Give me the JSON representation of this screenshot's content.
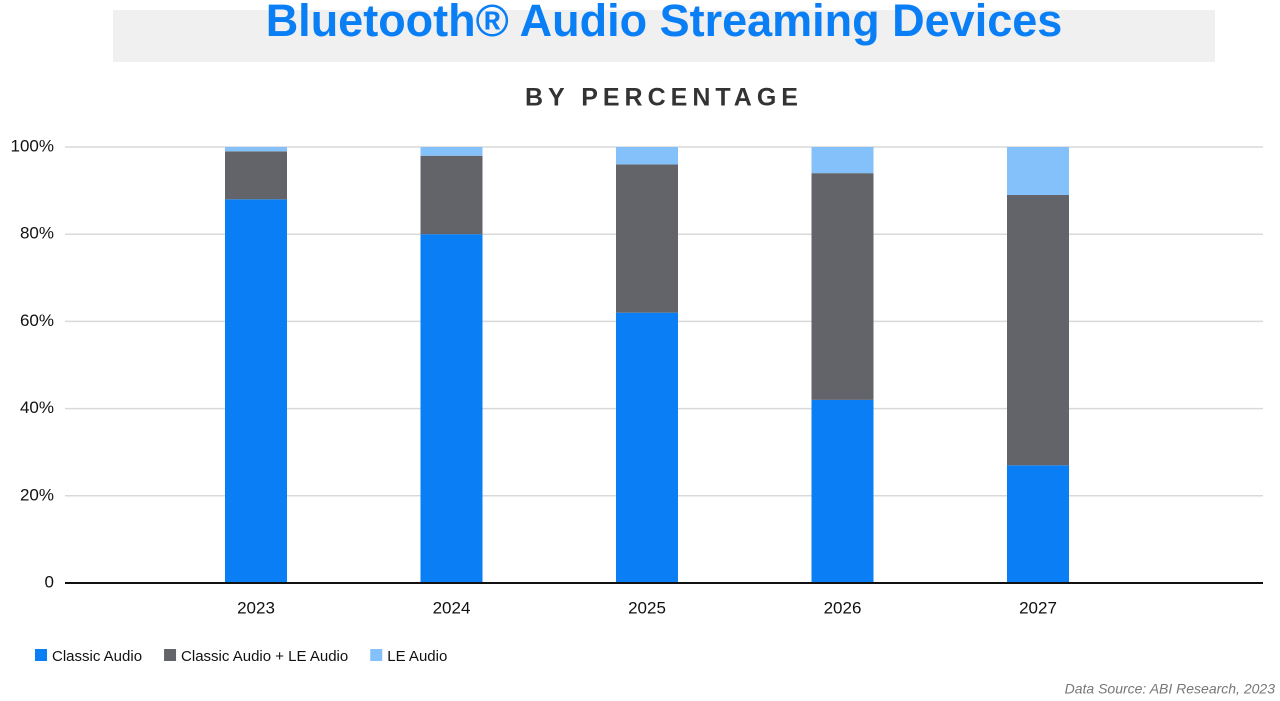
{
  "chart_data": {
    "type": "stacked_bar",
    "title": "Bluetooth® Audio Streaming Devices",
    "subtitle": "BY PERCENTAGE",
    "source": "Data Source: ABI Research, 2023",
    "categories": [
      "2023",
      "2024",
      "2025",
      "2026",
      "2027"
    ],
    "series": [
      {
        "name": "Classic Audio",
        "color": "#0a7ff5",
        "values": [
          88,
          80,
          62,
          42,
          27
        ]
      },
      {
        "name": "Classic Audio + LE Audio",
        "color": "#636469",
        "values": [
          11,
          18,
          34,
          52,
          62
        ]
      },
      {
        "name": "LE Audio",
        "color": "#84c1fb",
        "values": [
          1,
          2,
          4,
          6,
          11
        ]
      }
    ],
    "ylim": [
      0,
      100
    ],
    "yticks": [
      0,
      {
        "value": 20,
        "label": "20%"
      },
      {
        "value": 40,
        "label": "40%"
      },
      {
        "value": 60,
        "label": "60%"
      },
      {
        "value": 80,
        "label": "80%"
      },
      {
        "value": 100,
        "label": "100%"
      }
    ],
    "grid": true
  }
}
